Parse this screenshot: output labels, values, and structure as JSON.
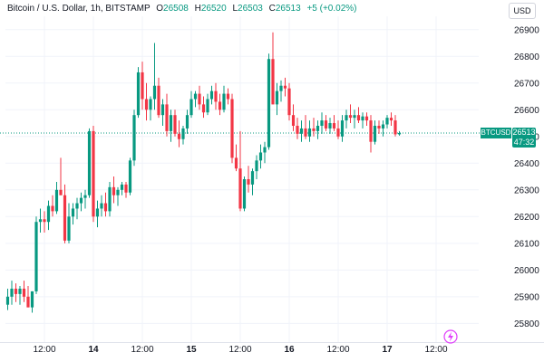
{
  "header": {
    "symbol": "Bitcoin / U.S. Dollar, 1h, BITSTAMP",
    "o_label": "O",
    "o_value": "26508",
    "h_label": "H",
    "h_value": "26520",
    "l_label": "L",
    "l_value": "26503",
    "c_label": "C",
    "c_value": "26513",
    "change": "+5 (+0.02%)",
    "currency": "USD"
  },
  "price_line": {
    "ticker": "BTCUSD",
    "price": "26513",
    "countdown": "47:32"
  },
  "colors": {
    "up": "#089981",
    "down": "#f23645",
    "grid": "#f0f3fa",
    "axis_text": "#131722"
  },
  "icons": {
    "event": "lightning-bolt-icon"
  },
  "chart_data": {
    "type": "candlestick",
    "title": "",
    "xlabel": "",
    "ylabel": "",
    "ylim": [
      25730,
      26950
    ],
    "y_ticks": [
      25800,
      25900,
      26000,
      26100,
      26200,
      26300,
      26400,
      26500,
      26600,
      26700,
      26800,
      26900
    ],
    "x_ticks": [
      {
        "label": "12:00",
        "bar": 9,
        "bold": false
      },
      {
        "label": "14",
        "bar": 21,
        "bold": true
      },
      {
        "label": "12:00",
        "bar": 33,
        "bold": false
      },
      {
        "label": "15",
        "bar": 45,
        "bold": true
      },
      {
        "label": "12:00",
        "bar": 57,
        "bold": false
      },
      {
        "label": "16",
        "bar": 69,
        "bold": true
      },
      {
        "label": "12:00",
        "bar": 81,
        "bold": false
      },
      {
        "label": "17",
        "bar": 93,
        "bold": true
      },
      {
        "label": "12:00",
        "bar": 105,
        "bold": false
      }
    ],
    "current_price": 26513,
    "candles": [
      [
        25870,
        25930,
        25850,
        25900
      ],
      [
        25900,
        25960,
        25870,
        25930
      ],
      [
        25930,
        25950,
        25880,
        25910
      ],
      [
        25910,
        25940,
        25870,
        25930
      ],
      [
        25930,
        25960,
        25880,
        25900
      ],
      [
        25900,
        25940,
        25860,
        25860
      ],
      [
        25860,
        25920,
        25840,
        25920
      ],
      [
        25920,
        26200,
        25910,
        26180
      ],
      [
        26180,
        26230,
        26140,
        26190
      ],
      [
        26190,
        26220,
        26140,
        26180
      ],
      [
        26180,
        26260,
        26150,
        26240
      ],
      [
        26240,
        26280,
        26200,
        26220
      ],
      [
        26220,
        26330,
        26210,
        26300
      ],
      [
        26300,
        26420,
        26280,
        26280
      ],
      [
        26280,
        26320,
        26100,
        26110
      ],
      [
        26110,
        26250,
        26100,
        26200
      ],
      [
        26200,
        26250,
        26170,
        26230
      ],
      [
        26230,
        26270,
        26190,
        26250
      ],
      [
        26250,
        26290,
        26220,
        26270
      ],
      [
        26270,
        26300,
        26230,
        26280
      ],
      [
        26280,
        26530,
        26270,
        26520
      ],
      [
        26520,
        26540,
        26180,
        26200
      ],
      [
        26200,
        26260,
        26160,
        26230
      ],
      [
        26230,
        26280,
        26200,
        26250
      ],
      [
        26250,
        26290,
        26200,
        26220
      ],
      [
        26220,
        26330,
        26200,
        26310
      ],
      [
        26310,
        26350,
        26250,
        26280
      ],
      [
        26280,
        26310,
        26240,
        26300
      ],
      [
        26300,
        26330,
        26280,
        26320
      ],
      [
        26320,
        26330,
        26270,
        26290
      ],
      [
        26290,
        26420,
        26280,
        26410
      ],
      [
        26410,
        26600,
        26390,
        26580
      ],
      [
        26580,
        26760,
        26570,
        26740
      ],
      [
        26740,
        26780,
        26600,
        26640
      ],
      [
        26640,
        26700,
        26560,
        26600
      ],
      [
        26600,
        26650,
        26560,
        26640
      ],
      [
        26640,
        26850,
        26600,
        26690
      ],
      [
        26690,
        26720,
        26570,
        26580
      ],
      [
        26580,
        26640,
        26540,
        26620
      ],
      [
        26620,
        26660,
        26500,
        26520
      ],
      [
        26520,
        26600,
        26480,
        26580
      ],
      [
        26580,
        26600,
        26500,
        26510
      ],
      [
        26510,
        26560,
        26460,
        26490
      ],
      [
        26490,
        26540,
        26470,
        26530
      ],
      [
        26530,
        26600,
        26510,
        26580
      ],
      [
        26580,
        26670,
        26570,
        26640
      ],
      [
        26640,
        26670,
        26610,
        26660
      ],
      [
        26660,
        26690,
        26600,
        26620
      ],
      [
        26620,
        26650,
        26570,
        26590
      ],
      [
        26590,
        26660,
        26580,
        26640
      ],
      [
        26640,
        26690,
        26620,
        26670
      ],
      [
        26670,
        26700,
        26600,
        26630
      ],
      [
        26630,
        26660,
        26580,
        26600
      ],
      [
        26600,
        26690,
        26590,
        26660
      ],
      [
        26660,
        26680,
        26620,
        26640
      ],
      [
        26640,
        26660,
        26400,
        26420
      ],
      [
        26420,
        26470,
        26370,
        26380
      ],
      [
        26380,
        26520,
        26220,
        26230
      ],
      [
        26230,
        26350,
        26220,
        26340
      ],
      [
        26340,
        26390,
        26290,
        26320
      ],
      [
        26320,
        26380,
        26280,
        26370
      ],
      [
        26370,
        26430,
        26340,
        26410
      ],
      [
        26410,
        26470,
        26380,
        26440
      ],
      [
        26440,
        26480,
        26400,
        26460
      ],
      [
        26460,
        26810,
        26450,
        26790
      ],
      [
        26790,
        26890,
        26620,
        26620
      ],
      [
        26620,
        26700,
        26580,
        26670
      ],
      [
        26670,
        26710,
        26630,
        26690
      ],
      [
        26690,
        26720,
        26650,
        26680
      ],
      [
        26680,
        26700,
        26560,
        26580
      ],
      [
        26580,
        26620,
        26520,
        26540
      ],
      [
        26540,
        26570,
        26490,
        26510
      ],
      [
        26510,
        26560,
        26480,
        26530
      ],
      [
        26530,
        26580,
        26490,
        26500
      ],
      [
        26500,
        26560,
        26480,
        26530
      ],
      [
        26530,
        26570,
        26500,
        26520
      ],
      [
        26520,
        26560,
        26490,
        26540
      ],
      [
        26540,
        26590,
        26510,
        26560
      ],
      [
        26560,
        26580,
        26520,
        26530
      ],
      [
        26530,
        26570,
        26510,
        26550
      ],
      [
        26550,
        26580,
        26520,
        26530
      ],
      [
        26530,
        26560,
        26490,
        26500
      ],
      [
        26500,
        26580,
        26480,
        26560
      ],
      [
        26560,
        26600,
        26530,
        26580
      ],
      [
        26580,
        26620,
        26550,
        26570
      ],
      [
        26570,
        26600,
        26530,
        26580
      ],
      [
        26580,
        26610,
        26550,
        26560
      ],
      [
        26560,
        26590,
        26530,
        26575
      ],
      [
        26575,
        26590,
        26540,
        26560
      ],
      [
        26560,
        26580,
        26440,
        26480
      ],
      [
        26480,
        26560,
        26470,
        26540
      ],
      [
        26540,
        26560,
        26510,
        26530
      ],
      [
        26530,
        26560,
        26500,
        26545
      ],
      [
        26545,
        26580,
        26530,
        26570
      ],
      [
        26570,
        26590,
        26540,
        26560
      ],
      [
        26560,
        26580,
        26500,
        26508
      ],
      [
        26508,
        26520,
        26503,
        26513
      ]
    ]
  }
}
